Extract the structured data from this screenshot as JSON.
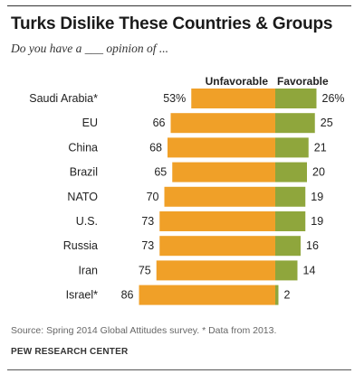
{
  "header": {
    "title": "Turks Dislike These Countries & Groups",
    "subtitle": "Do you have a ___ opinion of ..."
  },
  "footer": {
    "source": "Source: Spring 2014 Global Attitudes survey. * Data from 2013.",
    "credit": "PEW RESEARCH CENTER"
  },
  "colors": {
    "unfavorable": "#F0A028",
    "favorable": "#8FA63C"
  },
  "chart_data": {
    "type": "bar",
    "orientation": "horizontal-diverging",
    "title": "Turks Dislike These Countries & Groups",
    "subtitle": "Do you have a ___ opinion of ...",
    "series_labels": {
      "unfavorable": "Unfavorable",
      "favorable": "Favorable"
    },
    "categories": [
      "Saudi Arabia*",
      "EU",
      "China",
      "Brazil",
      "NATO",
      "U.S.",
      "Russia",
      "Iran",
      "Israel*"
    ],
    "series": [
      {
        "name": "Unfavorable",
        "values": [
          53,
          66,
          68,
          65,
          70,
          73,
          73,
          75,
          86
        ],
        "value_labels": [
          "53%",
          "66",
          "68",
          "65",
          "70",
          "73",
          "73",
          "75",
          "86"
        ]
      },
      {
        "name": "Favorable",
        "values": [
          26,
          25,
          21,
          20,
          19,
          19,
          16,
          14,
          2
        ],
        "value_labels": [
          "26%",
          "25",
          "21",
          "20",
          "19",
          "19",
          "16",
          "14",
          "2"
        ]
      }
    ]
  }
}
